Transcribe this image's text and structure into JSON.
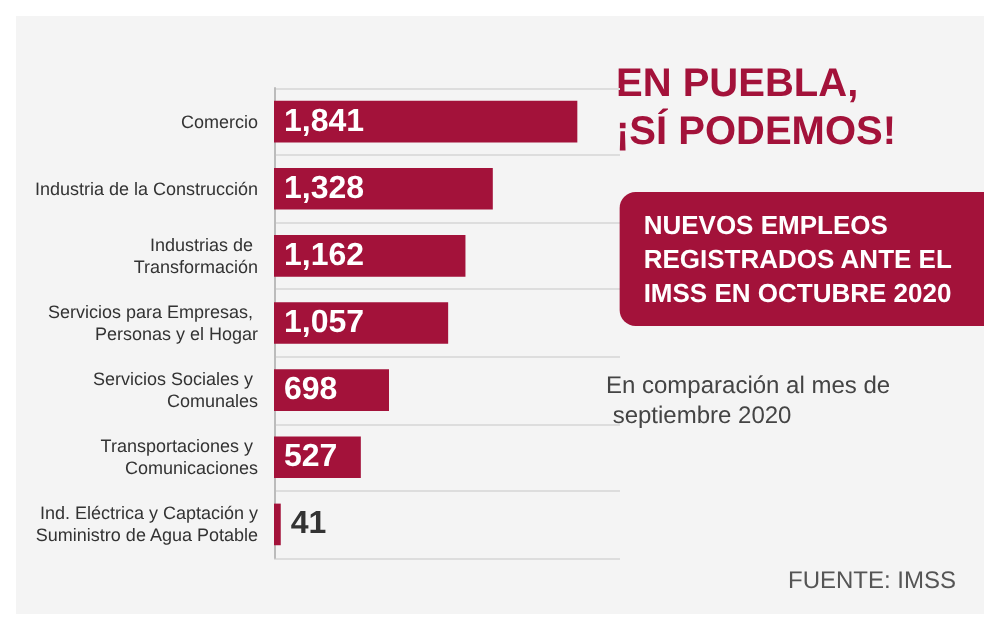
{
  "chart_data": {
    "type": "bar",
    "orientation": "horizontal",
    "title": "NUEVOS EMPLEOS REGISTRADOS ANTE EL IMSS EN OCTUBRE 2020",
    "subtitle": "En comparación al mes de septiembre 2020",
    "annotations": [
      "EN PUEBLA, ¡SÍ PODEMOS!",
      "FUENTE: IMSS"
    ],
    "categories": [
      "Comercio",
      "Industria de la Construcción",
      "Industrias de Transformación",
      "Servicios para Empresas, Personas y el Hogar",
      "Servicios Sociales y Comunales",
      "Transportaciones y Comunicaciones",
      "Ind. Eléctrica y Captación y Suministro de Agua Potable"
    ],
    "values": [
      1841,
      1328,
      1162,
      1057,
      698,
      527,
      41
    ],
    "value_labels": [
      "1,841",
      "1,328",
      "1,162",
      "1,057",
      "698",
      "527",
      "41"
    ],
    "color": "#a3123a",
    "grid": "y"
  }
}
